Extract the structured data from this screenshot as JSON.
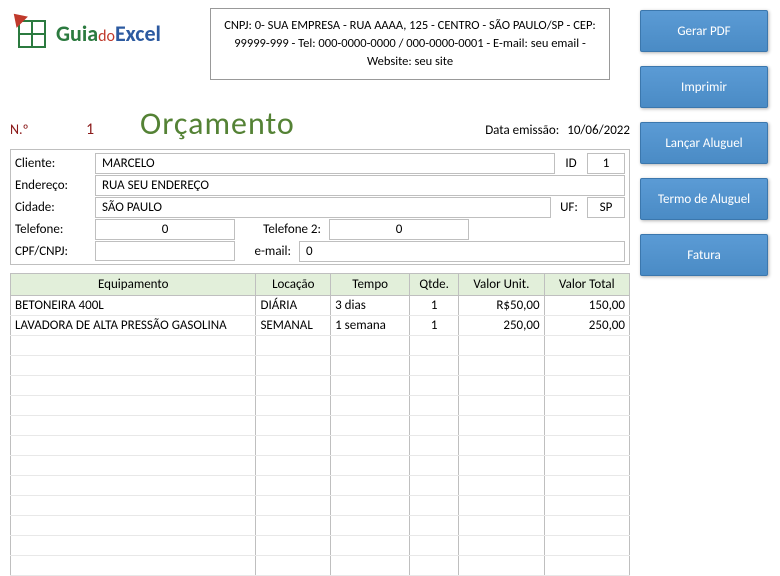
{
  "logo": {
    "brand_guia": "Guia",
    "brand_do": "do",
    "brand_excel": "Excel"
  },
  "company_info": "CNPJ: 0- SUA EMPRESA - RUA AAAA, 125 - CENTRO - SÃO PAULO/SP - CEP: 99999-999 - Tel: 000-0000-0000 / 000-0000-0001 - E-mail: seu email - Website: seu site",
  "budget": {
    "num_label": "N.º",
    "num_value": "1",
    "title": "Orçamento",
    "emit_label": "Data emissão:",
    "emit_value": "10/06/2022"
  },
  "client": {
    "labels": {
      "cliente": "Cliente:",
      "endereco": "Endereço:",
      "cidade": "Cidade:",
      "telefone": "Telefone:",
      "telefone2": "Telefone 2:",
      "cpfcnpj": "CPF/CNPJ:",
      "email": "e-mail:",
      "id": "ID",
      "uf": "UF:"
    },
    "values": {
      "cliente": "MARCELO",
      "id": "1",
      "endereco": "RUA SEU ENDEREÇO",
      "cidade": "SÃO PAULO",
      "uf": "SP",
      "telefone": "0",
      "telefone2": "0",
      "cpfcnpj": "",
      "email": "0"
    }
  },
  "table": {
    "headers": {
      "equip": "Equipamento",
      "loc": "Locação",
      "tempo": "Tempo",
      "qtde": "Qtde.",
      "unit": "Valor Unit.",
      "total": "Valor Total"
    },
    "rows": [
      {
        "equip": "BETONEIRA 400L",
        "loc": "DIÁRIA",
        "tempo": "3 dias",
        "qtde": "1",
        "unit": "R$50,00",
        "total": "150,00"
      },
      {
        "equip": "LAVADORA DE ALTA PRESSÃO GASOLINA",
        "loc": "SEMANAL",
        "tempo": "1 semana",
        "qtde": "1",
        "unit": "250,00",
        "total": "250,00"
      }
    ],
    "empty_rows": 12
  },
  "buttons": {
    "pdf": "Gerar PDF",
    "print": "Imprimir",
    "rent": "Lançar Aluguel",
    "term": "Termo de Aluguel",
    "invoice": "Fatura"
  }
}
